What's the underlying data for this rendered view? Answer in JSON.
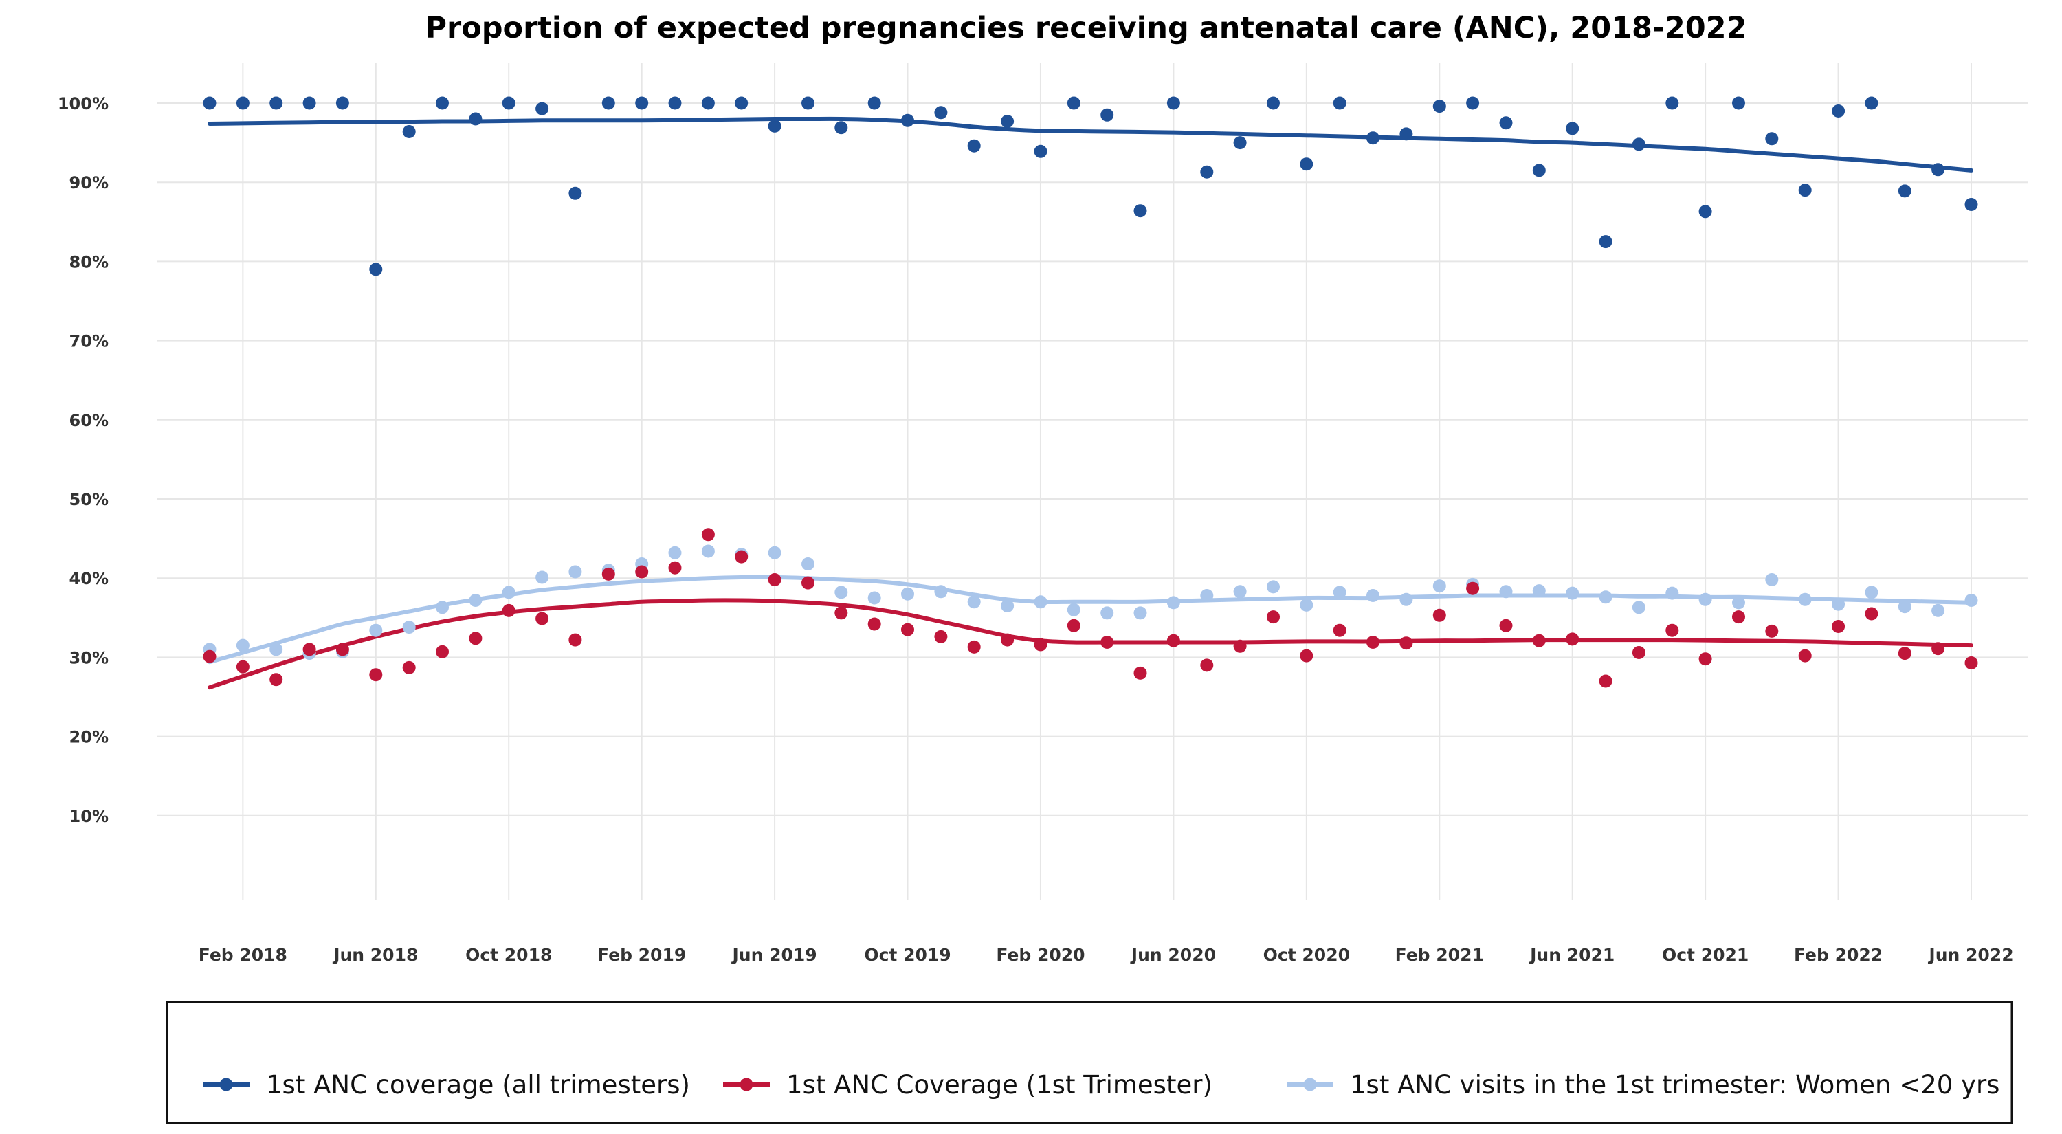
{
  "chart_data": {
    "type": "scatter",
    "title": "Proportion of expected pregnancies receiving antenatal care (ANC), 2018-2022",
    "xlabel": "",
    "ylabel": "",
    "x_range": [
      "2018-01",
      "2022-06"
    ],
    "ylim": [
      0,
      1.0
    ],
    "y_ticks": [
      {
        "value": 0.1,
        "label": "10%"
      },
      {
        "value": 0.2,
        "label": "20%"
      },
      {
        "value": 0.3,
        "label": "30%"
      },
      {
        "value": 0.4,
        "label": "40%"
      },
      {
        "value": 0.5,
        "label": "50%"
      },
      {
        "value": 0.6,
        "label": "60%"
      },
      {
        "value": 0.7,
        "label": "70%"
      },
      {
        "value": 0.8,
        "label": "80%"
      },
      {
        "value": 0.9,
        "label": "90%"
      },
      {
        "value": 1.0,
        "label": "100%"
      }
    ],
    "x_ticks": [
      {
        "value": "2018-02",
        "label": "Feb 2018"
      },
      {
        "value": "2018-06",
        "label": "Jun 2018"
      },
      {
        "value": "2018-10",
        "label": "Oct 2018"
      },
      {
        "value": "2019-02",
        "label": "Feb 2019"
      },
      {
        "value": "2019-06",
        "label": "Jun 2019"
      },
      {
        "value": "2019-10",
        "label": "Oct 2019"
      },
      {
        "value": "2020-02",
        "label": "Feb 2020"
      },
      {
        "value": "2020-06",
        "label": "Jun 2020"
      },
      {
        "value": "2020-10",
        "label": "Oct 2020"
      },
      {
        "value": "2021-02",
        "label": "Feb 2021"
      },
      {
        "value": "2021-06",
        "label": "Jun 2021"
      },
      {
        "value": "2021-10",
        "label": "Oct 2021"
      },
      {
        "value": "2022-02",
        "label": "Feb 2022"
      },
      {
        "value": "2022-06",
        "label": "Jun 2022"
      }
    ],
    "grid": true,
    "legend_position": "bottom",
    "x": [
      "2018-01",
      "2018-02",
      "2018-03",
      "2018-04",
      "2018-05",
      "2018-06",
      "2018-07",
      "2018-08",
      "2018-09",
      "2018-10",
      "2018-11",
      "2018-12",
      "2019-01",
      "2019-02",
      "2019-03",
      "2019-04",
      "2019-05",
      "2019-06",
      "2019-07",
      "2019-08",
      "2019-09",
      "2019-10",
      "2019-11",
      "2019-12",
      "2020-01",
      "2020-02",
      "2020-03",
      "2020-04",
      "2020-05",
      "2020-06",
      "2020-07",
      "2020-08",
      "2020-09",
      "2020-10",
      "2020-11",
      "2020-12",
      "2021-01",
      "2021-02",
      "2021-03",
      "2021-04",
      "2021-05",
      "2021-06",
      "2021-07",
      "2021-08",
      "2021-09",
      "2021-10",
      "2021-11",
      "2021-12",
      "2022-01",
      "2022-02",
      "2022-03",
      "2022-04",
      "2022-05",
      "2022-06"
    ],
    "series": [
      {
        "name": "1st ANC coverage (all trimesters)",
        "color": "#1f5096",
        "values": [
          1.0,
          1.0,
          1.0,
          1.0,
          1.0,
          0.79,
          0.964,
          1.0,
          0.98,
          1.0,
          0.993,
          0.886,
          1.0,
          1.0,
          1.0,
          1.0,
          1.0,
          0.971,
          1.0,
          0.969,
          1.0,
          0.978,
          0.988,
          0.946,
          0.977,
          0.939,
          1.0,
          0.985,
          0.864,
          1.0,
          0.913,
          0.95,
          1.0,
          0.923,
          1.0,
          0.956,
          0.961,
          0.996,
          1.0,
          0.975,
          0.915,
          0.968,
          0.825,
          0.948,
          1.0,
          0.863,
          1.0,
          0.955,
          0.89,
          0.99,
          1.0,
          0.889,
          0.916,
          0.872
        ],
        "trend": [
          0.974,
          0.9745,
          0.975,
          0.9755,
          0.976,
          0.976,
          0.9765,
          0.977,
          0.977,
          0.9775,
          0.978,
          0.978,
          0.978,
          0.978,
          0.9785,
          0.979,
          0.9795,
          0.98,
          0.98,
          0.98,
          0.979,
          0.977,
          0.974,
          0.97,
          0.967,
          0.965,
          0.9645,
          0.964,
          0.9635,
          0.963,
          0.962,
          0.961,
          0.96,
          0.959,
          0.958,
          0.957,
          0.956,
          0.955,
          0.954,
          0.953,
          0.951,
          0.95,
          0.948,
          0.946,
          0.944,
          0.942,
          0.939,
          0.936,
          0.933,
          0.93,
          0.927,
          0.923,
          0.919,
          0.915
        ]
      },
      {
        "name": "1st ANC Coverage (1st Trimester)",
        "color": "#c0163a",
        "values": [
          0.301,
          0.288,
          0.272,
          0.31,
          0.31,
          0.278,
          0.287,
          0.307,
          0.324,
          0.359,
          0.349,
          0.322,
          0.405,
          0.408,
          0.413,
          0.455,
          0.427,
          0.398,
          0.394,
          0.356,
          0.342,
          0.335,
          0.326,
          0.313,
          0.322,
          0.316,
          0.34,
          0.319,
          0.28,
          0.321,
          0.29,
          0.314,
          0.351,
          0.302,
          0.334,
          0.319,
          0.318,
          0.353,
          0.387,
          0.34,
          0.321,
          0.323,
          0.27,
          0.306,
          0.334,
          0.298,
          0.351,
          0.333,
          0.302,
          0.339,
          0.355,
          0.305,
          0.311,
          0.293
        ],
        "trend": [
          0.262,
          0.276,
          0.29,
          0.303,
          0.315,
          0.326,
          0.336,
          0.345,
          0.352,
          0.357,
          0.361,
          0.364,
          0.367,
          0.37,
          0.371,
          0.372,
          0.372,
          0.371,
          0.369,
          0.366,
          0.361,
          0.354,
          0.345,
          0.336,
          0.327,
          0.321,
          0.319,
          0.319,
          0.319,
          0.319,
          0.319,
          0.319,
          0.3195,
          0.32,
          0.32,
          0.32,
          0.3205,
          0.321,
          0.321,
          0.3215,
          0.322,
          0.322,
          0.322,
          0.322,
          0.322,
          0.3215,
          0.321,
          0.3205,
          0.32,
          0.319,
          0.318,
          0.317,
          0.316,
          0.315
        ]
      },
      {
        "name": "1st ANC visits in the 1st trimester: Women <20 yrs",
        "color": "#a9c5ea",
        "values": [
          0.31,
          0.315,
          0.31,
          0.305,
          0.307,
          0.334,
          0.338,
          0.363,
          0.372,
          0.382,
          0.401,
          0.408,
          0.41,
          0.418,
          0.432,
          0.434,
          0.43,
          0.432,
          0.418,
          0.382,
          0.375,
          0.38,
          0.383,
          0.37,
          0.365,
          0.37,
          0.36,
          0.356,
          0.356,
          0.369,
          0.378,
          0.383,
          0.389,
          0.366,
          0.382,
          0.378,
          0.373,
          0.39,
          0.392,
          0.383,
          0.384,
          0.381,
          0.376,
          0.363,
          0.381,
          0.373,
          0.369,
          0.398,
          0.373,
          0.367,
          0.382,
          0.364,
          0.359,
          0.372
        ],
        "trend": [
          0.294,
          0.306,
          0.318,
          0.33,
          0.342,
          0.35,
          0.358,
          0.366,
          0.373,
          0.379,
          0.385,
          0.389,
          0.393,
          0.396,
          0.398,
          0.4,
          0.401,
          0.401,
          0.4,
          0.398,
          0.396,
          0.392,
          0.386,
          0.379,
          0.373,
          0.37,
          0.37,
          0.37,
          0.37,
          0.371,
          0.372,
          0.373,
          0.374,
          0.375,
          0.375,
          0.375,
          0.376,
          0.377,
          0.378,
          0.378,
          0.378,
          0.378,
          0.378,
          0.377,
          0.377,
          0.376,
          0.376,
          0.375,
          0.374,
          0.373,
          0.372,
          0.371,
          0.37,
          0.369
        ]
      }
    ]
  }
}
